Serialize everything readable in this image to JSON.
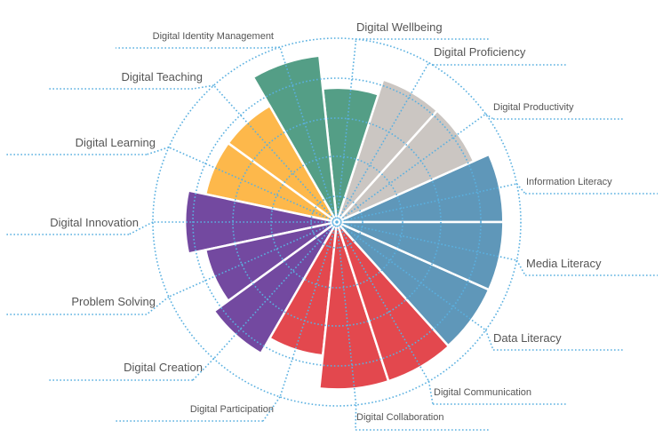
{
  "chart_data": {
    "type": "polar-area",
    "value_scale": "fraction of outer ring radius",
    "start_angle_note": "first category begins at east, categories proceed counterclockwise",
    "grid": true,
    "categories": [
      "Information Literacy",
      "Digital Productivity",
      "Digital Proficiency",
      "Digital Wellbeing",
      "Digital Identity Management",
      "Digital Teaching",
      "Digital Learning",
      "Digital Innovation",
      "Problem Solving",
      "Digital Creation",
      "Digital Participation",
      "Digital Collaboration",
      "Digital Communication",
      "Data Literacy",
      "Media Literacy"
    ],
    "values": [
      0.905,
      0.815,
      0.815,
      0.73,
      0.91,
      0.73,
      0.73,
      0.825,
      0.73,
      0.825,
      0.73,
      0.91,
      0.91,
      0.905,
      0.905
    ],
    "colors": [
      "#5f97b9",
      "#cbc6c2",
      "#cbc6c2",
      "#549e86",
      "#549e86",
      "#fdb84b",
      "#fdb84b",
      "#7349a0",
      "#7349a0",
      "#7349a0",
      "#e3484e",
      "#e3484e",
      "#e3484e",
      "#5f97b9",
      "#5f97b9"
    ],
    "grid_color": "#5ab0e0",
    "label_color": "#555555"
  }
}
